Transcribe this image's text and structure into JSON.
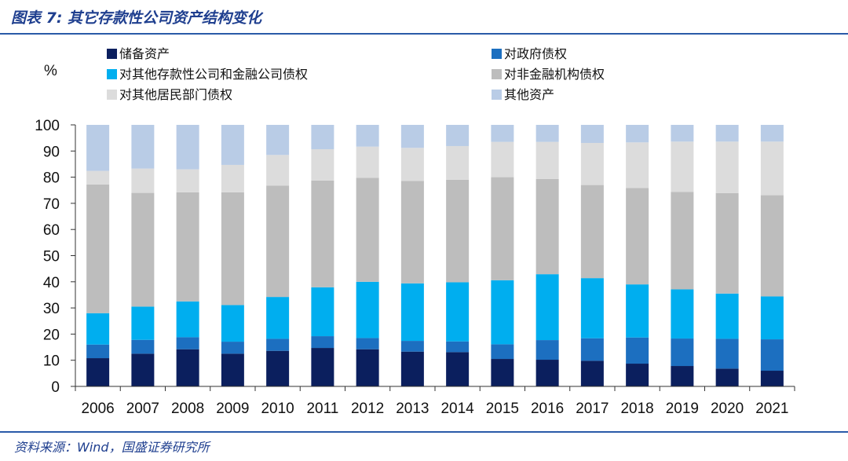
{
  "figure": {
    "title": "图表 7: 其它存款性公司资产结构变化",
    "source": "资料来源：Wind，国盛证券研究所"
  },
  "chart_data": {
    "type": "bar",
    "stacked": true,
    "ylabel": "%",
    "ylim": [
      0,
      100
    ],
    "yticks": [
      0,
      10,
      20,
      30,
      40,
      50,
      60,
      70,
      80,
      90,
      100
    ],
    "grid": false,
    "legend_position": "top",
    "categories": [
      "2006",
      "2007",
      "2008",
      "2009",
      "2010",
      "2011",
      "2012",
      "2013",
      "2014",
      "2015",
      "2016",
      "2017",
      "2018",
      "2019",
      "2020",
      "2021"
    ],
    "series": [
      {
        "name": "储备资产",
        "color": "#0b1f5e",
        "values": [
          10.8,
          12.5,
          14.2,
          12.5,
          13.6,
          14.7,
          14.2,
          13.3,
          13.1,
          10.5,
          10.2,
          9.8,
          8.7,
          7.8,
          6.8,
          6.0
        ]
      },
      {
        "name": "对政府债权",
        "color": "#1c6fc0",
        "values": [
          5.2,
          5.3,
          4.6,
          4.6,
          4.6,
          4.5,
          4.3,
          4.1,
          4.1,
          5.6,
          7.5,
          8.6,
          10.0,
          10.5,
          11.4,
          12.0
        ]
      },
      {
        "name": "对其他存款性公司和金融公司债权",
        "color": "#00aeef",
        "values": [
          12.0,
          12.7,
          13.7,
          14.0,
          16.0,
          18.7,
          21.5,
          22.0,
          22.6,
          24.5,
          25.2,
          23.0,
          20.3,
          18.8,
          17.3,
          16.4
        ]
      },
      {
        "name": "对非金融机构债权",
        "color": "#bdbdbd",
        "values": [
          49.2,
          43.5,
          41.7,
          43.1,
          42.6,
          40.8,
          39.8,
          39.2,
          39.2,
          39.4,
          36.4,
          35.6,
          36.9,
          37.3,
          38.4,
          38.7
        ]
      },
      {
        "name": "对其他居民部门债权",
        "color": "#dcdcdc",
        "values": [
          5.2,
          9.3,
          8.8,
          10.5,
          11.7,
          12.0,
          11.9,
          12.6,
          12.9,
          13.5,
          14.2,
          16.1,
          17.4,
          19.2,
          19.7,
          20.5
        ]
      },
      {
        "name": "其他资产",
        "color": "#b9cce6",
        "values": [
          17.6,
          16.7,
          17.0,
          15.3,
          11.5,
          9.3,
          8.3,
          8.8,
          8.1,
          6.5,
          6.5,
          6.9,
          6.7,
          6.4,
          6.4,
          6.4
        ]
      }
    ]
  }
}
